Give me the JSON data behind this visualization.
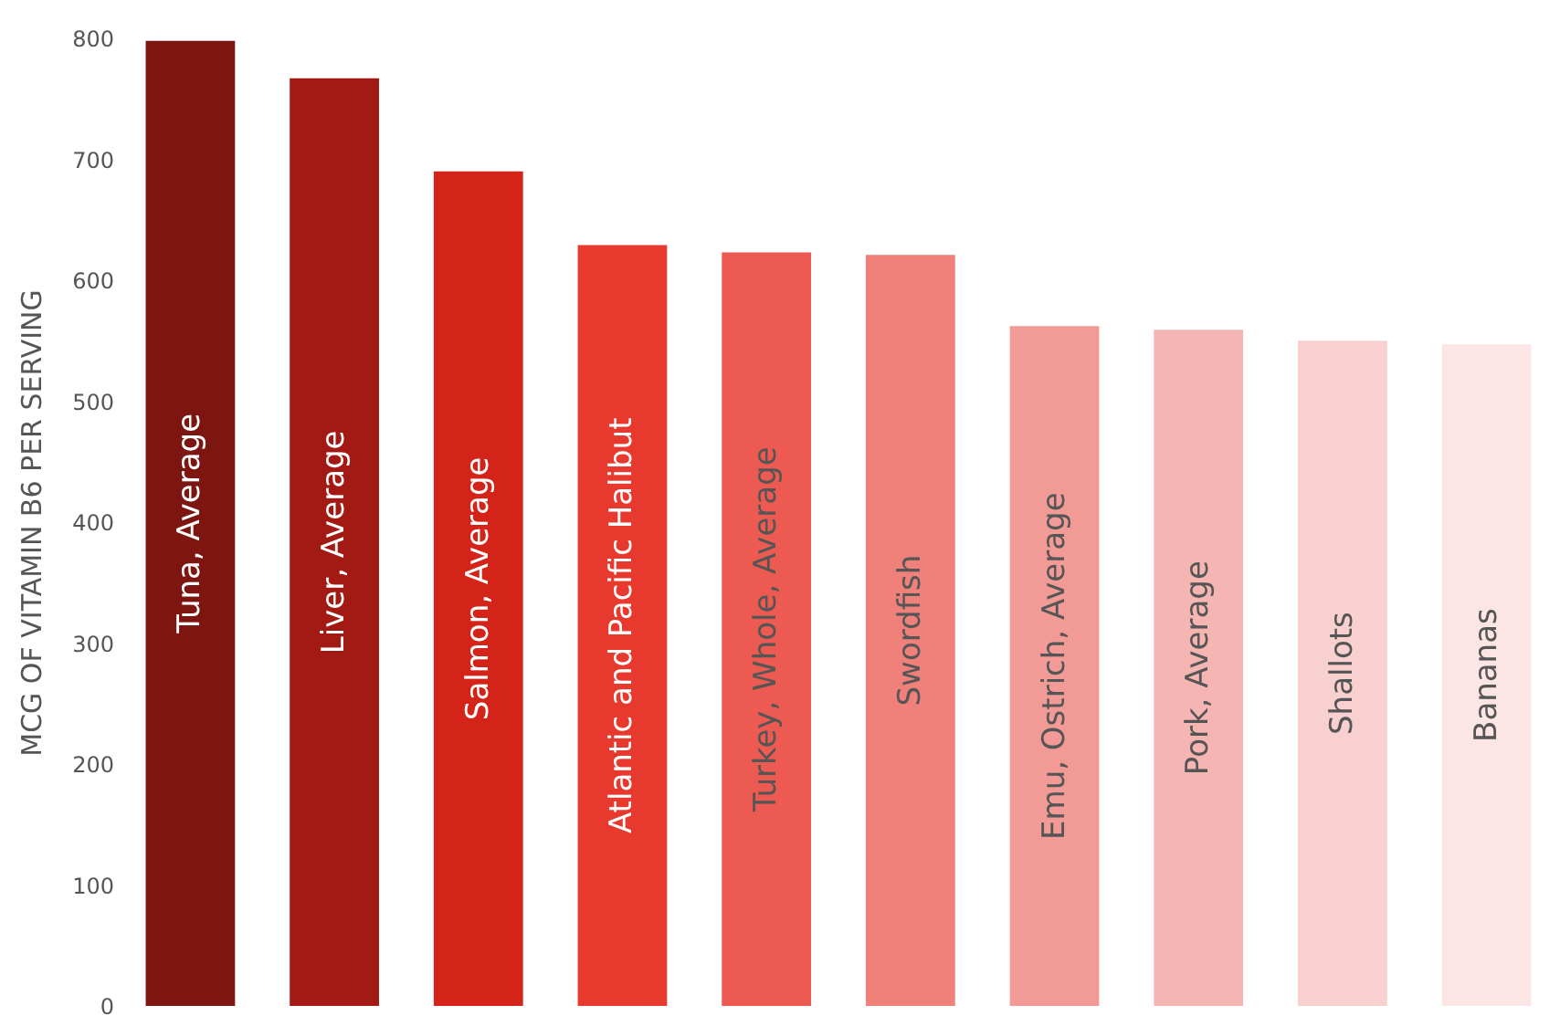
{
  "chart_data": {
    "type": "bar",
    "ylabel": "MCG OF VITAMIN B6 PER SERVING",
    "categories": [
      "Tuna, Average",
      "Liver, Average",
      "Salmon, Average",
      "Atlantic and Pacific Halibut",
      "Turkey, Whole, Average",
      "Swordfish",
      "Emu, Ostrich, Average",
      "Pork, Average",
      "Shallots",
      "Bananas"
    ],
    "values": [
      798,
      767,
      690,
      629,
      623,
      621,
      562,
      559,
      550,
      547
    ],
    "colors": [
      "#7d1510",
      "#a31a14",
      "#d42318",
      "#e8392e",
      "#ec5a52",
      "#ef807a",
      "#f29a96",
      "#f5b5b3",
      "#f8d0cf",
      "#fbe6e5"
    ],
    "ylim": [
      0,
      800
    ],
    "yticks": [
      0,
      100,
      200,
      300,
      400,
      500,
      600,
      700,
      800
    ]
  }
}
